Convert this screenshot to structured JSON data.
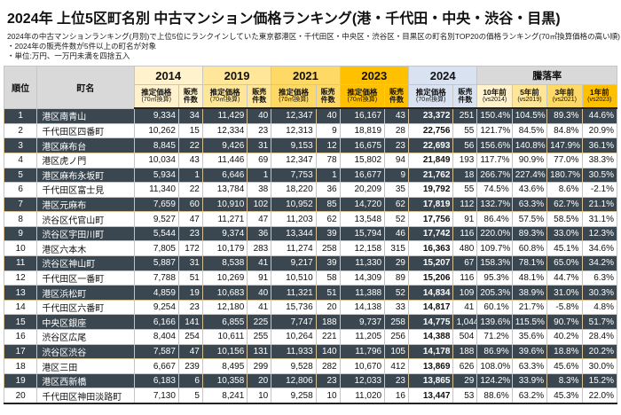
{
  "title": "2024年  上位5区町名別  中古マンション価格ランキング(港・千代田・中央・渋谷・目黒)",
  "notes": [
    "2024年の中古マンションランキング(月別)で上位5位にランクインしていた東京都港区・千代田区・中央区・渋谷区・目黒区の町名別TOP20の価格ランキング(70㎡換算価格の高い順)",
    "・2024年の販売件数が5件以上の町名が対象",
    "・単位:万円、一万円未満を四捨五入"
  ],
  "colors": {
    "header_gray": "#d9d9d9",
    "year_2014": "#fff2cc",
    "year_2019": "#ffe699",
    "year_2021": "#ffd966",
    "year_2023": "#ffc000",
    "year_2024": "#d9e2f0",
    "highlight_row_bg": "#3a4750",
    "highlight_row_border": "#d8be93",
    "highlight_row_text": "#ffffff"
  },
  "chart_data": {
    "type": "table",
    "title": "2024年 上位5区町名別 中古マンション価格ランキング",
    "corner_headers": [
      "順位",
      "町名"
    ],
    "price_label": "推定価格",
    "price_sub": "(70㎡換算)",
    "sales_label_lines": [
      "販売",
      "件数"
    ],
    "rate_group_label": "騰落率",
    "year_groups": [
      {
        "year": "2014",
        "color": "#fff2cc"
      },
      {
        "year": "2019",
        "color": "#ffe699"
      },
      {
        "year": "2021",
        "color": "#ffd966"
      },
      {
        "year": "2023",
        "color": "#ffc000"
      },
      {
        "year": "2024",
        "color": "#d9e2f0"
      }
    ],
    "rate_cols": [
      {
        "label": "10年前",
        "sub": "(vs2014)",
        "color": "#fff2cc"
      },
      {
        "label": "5年前",
        "sub": "(vs2019)",
        "color": "#ffe699"
      },
      {
        "label": "3年前",
        "sub": "(vs2021)",
        "color": "#ffd966"
      },
      {
        "label": "1年前",
        "sub": "(vs2023)",
        "color": "#ffc000"
      }
    ],
    "rows": [
      {
        "rank": "1",
        "name": "港区南青山",
        "highlight": true,
        "values": [
          [
            "9,334",
            "34"
          ],
          [
            "11,429",
            "40"
          ],
          [
            "12,347",
            "40"
          ],
          [
            "16,167",
            "43"
          ],
          [
            "23,372",
            "251"
          ]
        ],
        "rates": [
          "150.4%",
          "104.5%",
          "89.3%",
          "44.6%"
        ]
      },
      {
        "rank": "2",
        "name": "千代田区四番町",
        "highlight": false,
        "values": [
          [
            "10,262",
            "15"
          ],
          [
            "12,334",
            "23"
          ],
          [
            "12,313",
            "9"
          ],
          [
            "18,819",
            "28"
          ],
          [
            "22,756",
            "55"
          ]
        ],
        "rates": [
          "121.7%",
          "84.5%",
          "84.8%",
          "20.9%"
        ]
      },
      {
        "rank": "3",
        "name": "港区麻布台",
        "highlight": true,
        "values": [
          [
            "8,845",
            "22"
          ],
          [
            "9,426",
            "31"
          ],
          [
            "9,153",
            "12"
          ],
          [
            "16,675",
            "23"
          ],
          [
            "22,693",
            "56"
          ]
        ],
        "rates": [
          "156.6%",
          "140.8%",
          "147.9%",
          "36.1%"
        ]
      },
      {
        "rank": "4",
        "name": "港区虎ノ門",
        "highlight": false,
        "values": [
          [
            "10,034",
            "43"
          ],
          [
            "11,446",
            "69"
          ],
          [
            "12,347",
            "78"
          ],
          [
            "15,802",
            "94"
          ],
          [
            "21,849",
            "193"
          ]
        ],
        "rates": [
          "117.7%",
          "90.9%",
          "77.0%",
          "38.3%"
        ]
      },
      {
        "rank": "5",
        "name": "港区麻布永坂町",
        "highlight": true,
        "values": [
          [
            "5,934",
            "1"
          ],
          [
            "6,646",
            "1"
          ],
          [
            "7,753",
            "1"
          ],
          [
            "16,677",
            "9"
          ],
          [
            "21,762",
            "18"
          ]
        ],
        "rates": [
          "266.7%",
          "227.4%",
          "180.7%",
          "30.5%"
        ]
      },
      {
        "rank": "6",
        "name": "千代田区富士見",
        "highlight": false,
        "values": [
          [
            "11,340",
            "22"
          ],
          [
            "13,784",
            "38"
          ],
          [
            "18,220",
            "36"
          ],
          [
            "20,209",
            "35"
          ],
          [
            "19,792",
            "55"
          ]
        ],
        "rates": [
          "74.5%",
          "43.6%",
          "8.6%",
          "-2.1%"
        ]
      },
      {
        "rank": "7",
        "name": "港区元麻布",
        "highlight": true,
        "values": [
          [
            "7,659",
            "60"
          ],
          [
            "10,910",
            "102"
          ],
          [
            "10,952",
            "85"
          ],
          [
            "14,720",
            "62"
          ],
          [
            "17,819",
            "112"
          ]
        ],
        "rates": [
          "132.7%",
          "63.3%",
          "62.7%",
          "21.1%"
        ]
      },
      {
        "rank": "8",
        "name": "渋谷区代官山町",
        "highlight": false,
        "values": [
          [
            "9,527",
            "47"
          ],
          [
            "11,271",
            "47"
          ],
          [
            "11,203",
            "62"
          ],
          [
            "13,548",
            "52"
          ],
          [
            "17,756",
            "91"
          ]
        ],
        "rates": [
          "86.4%",
          "57.5%",
          "58.5%",
          "31.1%"
        ]
      },
      {
        "rank": "9",
        "name": "渋谷区宇田川町",
        "highlight": true,
        "values": [
          [
            "5,544",
            "23"
          ],
          [
            "9,374",
            "36"
          ],
          [
            "13,344",
            "39"
          ],
          [
            "15,794",
            "46"
          ],
          [
            "17,742",
            "116"
          ]
        ],
        "rates": [
          "220.0%",
          "89.3%",
          "33.0%",
          "12.3%"
        ]
      },
      {
        "rank": "10",
        "name": "港区六本木",
        "highlight": false,
        "values": [
          [
            "7,805",
            "172"
          ],
          [
            "10,179",
            "283"
          ],
          [
            "11,274",
            "258"
          ],
          [
            "12,158",
            "315"
          ],
          [
            "16,363",
            "480"
          ]
        ],
        "rates": [
          "109.7%",
          "60.8%",
          "45.1%",
          "34.6%"
        ]
      },
      {
        "rank": "11",
        "name": "渋谷区神山町",
        "highlight": true,
        "values": [
          [
            "5,887",
            "31"
          ],
          [
            "8,538",
            "41"
          ],
          [
            "9,217",
            "39"
          ],
          [
            "11,330",
            "29"
          ],
          [
            "15,207",
            "67"
          ]
        ],
        "rates": [
          "158.3%",
          "78.1%",
          "65.0%",
          "34.2%"
        ]
      },
      {
        "rank": "12",
        "name": "千代田区一番町",
        "highlight": false,
        "values": [
          [
            "7,788",
            "51"
          ],
          [
            "10,269",
            "91"
          ],
          [
            "10,510",
            "58"
          ],
          [
            "14,309",
            "89"
          ],
          [
            "15,206",
            "116"
          ]
        ],
        "rates": [
          "95.3%",
          "48.1%",
          "44.7%",
          "6.3%"
        ]
      },
      {
        "rank": "13",
        "name": "港区浜松町",
        "highlight": true,
        "values": [
          [
            "4,859",
            "19"
          ],
          [
            "10,683",
            "40"
          ],
          [
            "11,321",
            "51"
          ],
          [
            "11,388",
            "52"
          ],
          [
            "14,834",
            "109"
          ]
        ],
        "rates": [
          "205.3%",
          "38.9%",
          "31.0%",
          "30.3%"
        ]
      },
      {
        "rank": "14",
        "name": "千代田区六番町",
        "highlight": false,
        "values": [
          [
            "9,254",
            "23"
          ],
          [
            "12,180",
            "41"
          ],
          [
            "15,736",
            "20"
          ],
          [
            "14,138",
            "33"
          ],
          [
            "14,817",
            "41"
          ]
        ],
        "rates": [
          "60.1%",
          "21.7%",
          "-5.8%",
          "4.8%"
        ]
      },
      {
        "rank": "15",
        "name": "中央区銀座",
        "highlight": true,
        "values": [
          [
            "6,166",
            "141"
          ],
          [
            "6,855",
            "225"
          ],
          [
            "7,747",
            "188"
          ],
          [
            "9,737",
            "258"
          ],
          [
            "14,775",
            "1,044"
          ]
        ],
        "rates": [
          "139.6%",
          "115.5%",
          "90.7%",
          "51.7%"
        ]
      },
      {
        "rank": "16",
        "name": "渋谷区広尾",
        "highlight": false,
        "values": [
          [
            "8,404",
            "254"
          ],
          [
            "10,611",
            "255"
          ],
          [
            "10,264",
            "221"
          ],
          [
            "11,205",
            "256"
          ],
          [
            "14,388",
            "504"
          ]
        ],
        "rates": [
          "71.2%",
          "35.6%",
          "40.2%",
          "28.4%"
        ]
      },
      {
        "rank": "17",
        "name": "渋谷区渋谷",
        "highlight": true,
        "values": [
          [
            "7,587",
            "47"
          ],
          [
            "10,156",
            "131"
          ],
          [
            "11,933",
            "140"
          ],
          [
            "11,796",
            "105"
          ],
          [
            "14,178",
            "188"
          ]
        ],
        "rates": [
          "86.9%",
          "39.6%",
          "18.8%",
          "20.2%"
        ]
      },
      {
        "rank": "18",
        "name": "港区三田",
        "highlight": false,
        "values": [
          [
            "6,667",
            "239"
          ],
          [
            "8,495",
            "299"
          ],
          [
            "9,528",
            "282"
          ],
          [
            "10,670",
            "412"
          ],
          [
            "13,869",
            "626"
          ]
        ],
        "rates": [
          "108.0%",
          "63.3%",
          "45.6%",
          "30.0%"
        ]
      },
      {
        "rank": "19",
        "name": "港区西新橋",
        "highlight": true,
        "values": [
          [
            "6,183",
            "6"
          ],
          [
            "10,358",
            "20"
          ],
          [
            "12,806",
            "23"
          ],
          [
            "12,033",
            "23"
          ],
          [
            "13,865",
            "29"
          ]
        ],
        "rates": [
          "124.2%",
          "33.9%",
          "8.3%",
          "15.2%"
        ]
      },
      {
        "rank": "20",
        "name": "千代田区神田淡路町",
        "highlight": false,
        "values": [
          [
            "7,130",
            "5"
          ],
          [
            "8,241",
            "10"
          ],
          [
            "9,258",
            "10"
          ],
          [
            "11,020",
            "16"
          ],
          [
            "13,447",
            "53"
          ]
        ],
        "rates": [
          "88.6%",
          "63.2%",
          "45.3%",
          "22.0%"
        ]
      }
    ]
  }
}
